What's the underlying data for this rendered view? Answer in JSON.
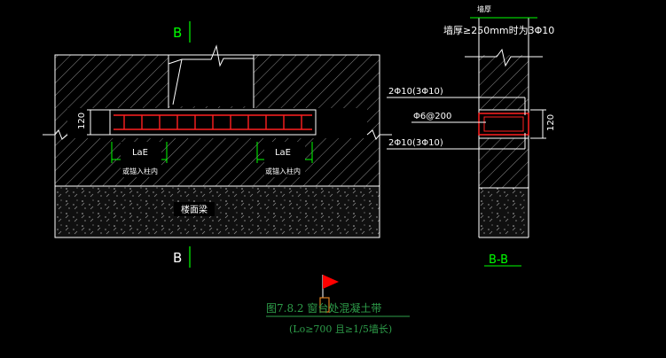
{
  "section_marker_top": "B",
  "section_marker_bottom": "B",
  "dim_120_left": "120",
  "dim_120_right": "120",
  "lae_left": "LaE",
  "lae_left_sub": "或锚入柱内",
  "lae_right": "LaE",
  "lae_right_sub": "或锚入柱内",
  "floor_beam": "楼面梁",
  "wall_thickness_label": "墙厚",
  "wall_note": "墙厚≥250mm时为3Φ10",
  "rebar_top": "2Φ10(3Φ10)",
  "rebar_stirrup": "Φ6@200",
  "rebar_bottom": "2Φ10(3Φ10)",
  "section_bb": "B-B",
  "figure_caption": "图7.8.2  窗台处混凝土带",
  "figure_note": "(Lo≥700 且≥1/5墙长)",
  "colors": {
    "rebar": "#ff2020",
    "dim": "#00ff00",
    "caption": "#2e9e4a",
    "flag": "#ff0000",
    "outline": "#ffffff"
  }
}
